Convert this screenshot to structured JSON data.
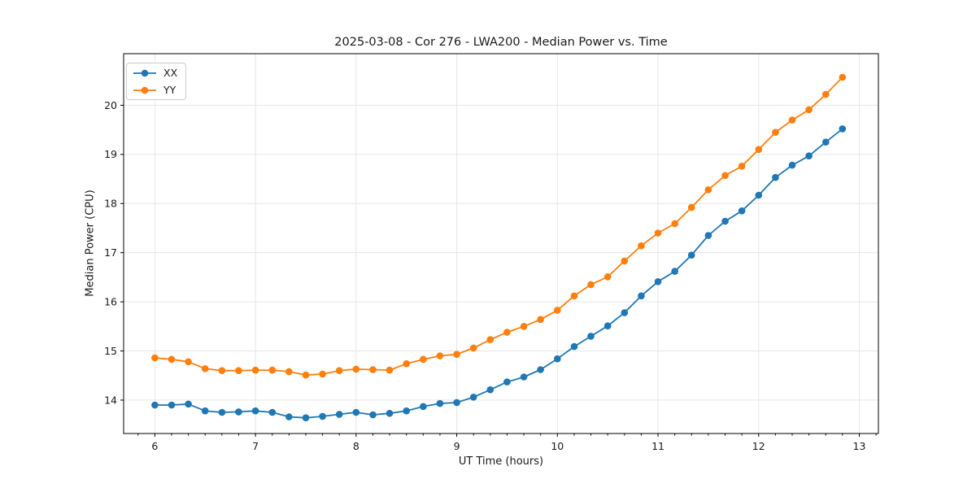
{
  "chart_data": {
    "type": "line",
    "title": "2025-03-08 - Cor 276 - LWA200 - Median Power vs. Time",
    "xlabel": "UT Time (hours)",
    "ylabel": "Median Power (CPU)",
    "xlim": [
      5.69,
      13.19
    ],
    "ylim": [
      13.32,
      21.05
    ],
    "xticks": [
      6,
      7,
      8,
      9,
      10,
      11,
      12,
      13
    ],
    "yticks": [
      14,
      15,
      16,
      17,
      18,
      19,
      20
    ],
    "x_minor_per_unit": 6,
    "grid": true,
    "legend_position": "upper left",
    "x": [
      6,
      6.167,
      6.333,
      6.5,
      6.667,
      6.833,
      7,
      7.167,
      7.333,
      7.5,
      7.667,
      7.833,
      8,
      8.167,
      8.333,
      8.5,
      8.667,
      8.833,
      9,
      9.167,
      9.333,
      9.5,
      9.667,
      9.833,
      10,
      10.167,
      10.333,
      10.5,
      10.667,
      10.833,
      11,
      11.167,
      11.333,
      11.5,
      11.667,
      11.833,
      12,
      12.167,
      12.333,
      12.5,
      12.667,
      12.833
    ],
    "series": [
      {
        "name": "XX",
        "color": "#1f77b4",
        "values": [
          13.9,
          13.9,
          13.92,
          13.78,
          13.75,
          13.76,
          13.78,
          13.75,
          13.66,
          13.64,
          13.67,
          13.71,
          13.75,
          13.7,
          13.73,
          13.78,
          13.87,
          13.93,
          13.95,
          14.06,
          14.21,
          14.37,
          14.47,
          14.62,
          14.84,
          15.09,
          15.3,
          15.51,
          15.78,
          16.12,
          16.41,
          16.62,
          16.95,
          17.35,
          17.64,
          17.85,
          18.17,
          18.53,
          18.78,
          18.97,
          19.25,
          19.52
        ]
      },
      {
        "name": "YY",
        "color": "#ff7f0e",
        "values": [
          14.86,
          14.83,
          14.78,
          14.64,
          14.6,
          14.6,
          14.61,
          14.61,
          14.58,
          14.51,
          14.53,
          14.6,
          14.63,
          14.62,
          14.61,
          14.74,
          14.83,
          14.9,
          14.93,
          15.06,
          15.23,
          15.38,
          15.5,
          15.64,
          15.83,
          16.12,
          16.35,
          16.51,
          16.83,
          17.14,
          17.4,
          17.59,
          17.92,
          18.28,
          18.57,
          18.76,
          19.1,
          19.45,
          19.7,
          19.91,
          20.22,
          20.57
        ]
      }
    ],
    "colors": {
      "grid": "#e6e6e6",
      "spine": "#000000",
      "tick_text": "#1a1a1a",
      "background": "#ffffff"
    }
  }
}
